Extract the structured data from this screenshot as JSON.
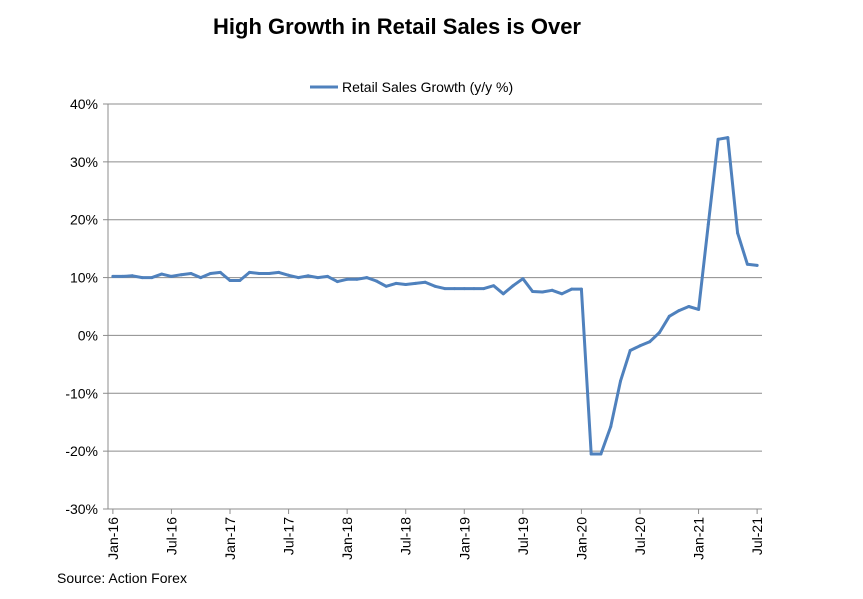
{
  "chart_data": {
    "type": "line",
    "title": "High Growth in Retail Sales is Over",
    "xlabel": "",
    "ylabel": "",
    "ylim": [
      -30,
      40
    ],
    "y_ticks": [
      40,
      30,
      20,
      10,
      0,
      -10,
      -20,
      -30
    ],
    "y_tick_labels": [
      "40%",
      "30%",
      "20%",
      "10%",
      "0%",
      "-10%",
      "-20%",
      "-30%"
    ],
    "x_tick_labels": [
      "Jan-16",
      "Jul-16",
      "Jan-17",
      "Jul-17",
      "Jan-18",
      "Jul-18",
      "Jan-19",
      "Jul-19",
      "Jan-20",
      "Jul-20",
      "Jan-21",
      "Jul-21"
    ],
    "legend": "top-center",
    "series": [
      {
        "name": "Retail Sales Growth (y/y %)",
        "color": "#4f81bd",
        "start": "Jan-16",
        "end": "Jun-21",
        "values": [
          10.2,
          10.2,
          10.3,
          10.0,
          10.0,
          10.6,
          10.2,
          10.5,
          10.7,
          10.0,
          10.7,
          10.9,
          9.5,
          9.5,
          10.9,
          10.7,
          10.7,
          10.9,
          10.4,
          10.0,
          10.3,
          10.0,
          10.2,
          9.3,
          9.7,
          9.7,
          10.0,
          9.4,
          8.5,
          9.0,
          8.8,
          9.0,
          9.2,
          8.5,
          8.1,
          8.1,
          8.1,
          8.1,
          8.1,
          8.6,
          7.2,
          8.6,
          9.8,
          7.6,
          7.5,
          7.8,
          7.2,
          8.0,
          8.0,
          -20.5,
          -20.5,
          -15.8,
          -7.9,
          -2.6,
          -1.8,
          -1.1,
          0.5,
          3.3,
          4.3,
          5.0,
          4.5,
          19.2,
          33.9,
          34.2,
          17.7,
          12.3,
          12.1
        ]
      }
    ]
  },
  "footer": {
    "source": "Source: Action Forex"
  }
}
